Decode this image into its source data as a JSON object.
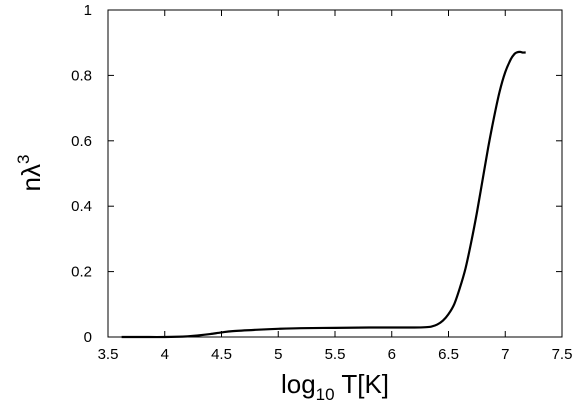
{
  "chart_data": {
    "type": "line",
    "title": "",
    "xlabel": {
      "prefix": "log",
      "subscript": "10",
      "suffix": " T[K]"
    },
    "ylabel": {
      "base": "nλ",
      "superscript": "3"
    },
    "xlim": [
      3.5,
      7.5
    ],
    "ylim": [
      0,
      1
    ],
    "xticks": [
      "3.5",
      "4",
      "4.5",
      "5",
      "5.5",
      "6",
      "6.5",
      "7",
      "7.5"
    ],
    "yticks": [
      "0",
      "0.2",
      "0.4",
      "0.6",
      "0.8",
      "1"
    ],
    "grid": false,
    "legend": "none",
    "series": [
      {
        "color": "#000000",
        "x": [
          3.62,
          3.8,
          4.0,
          4.2,
          4.3,
          4.4,
          4.5,
          4.6,
          4.8,
          5.0,
          5.2,
          5.5,
          5.8,
          6.0,
          6.2,
          6.3,
          6.35,
          6.4,
          6.45,
          6.5,
          6.55,
          6.6,
          6.65,
          6.7,
          6.75,
          6.8,
          6.85,
          6.9,
          6.95,
          7.0,
          7.05,
          7.08,
          7.1,
          7.13,
          7.15,
          7.18
        ],
        "y": [
          0.0,
          0.0,
          0.0,
          0.002,
          0.005,
          0.009,
          0.014,
          0.018,
          0.022,
          0.025,
          0.027,
          0.028,
          0.029,
          0.029,
          0.029,
          0.03,
          0.032,
          0.038,
          0.05,
          0.07,
          0.1,
          0.15,
          0.21,
          0.29,
          0.38,
          0.48,
          0.58,
          0.67,
          0.75,
          0.81,
          0.85,
          0.865,
          0.87,
          0.872,
          0.87,
          0.87
        ]
      }
    ]
  }
}
